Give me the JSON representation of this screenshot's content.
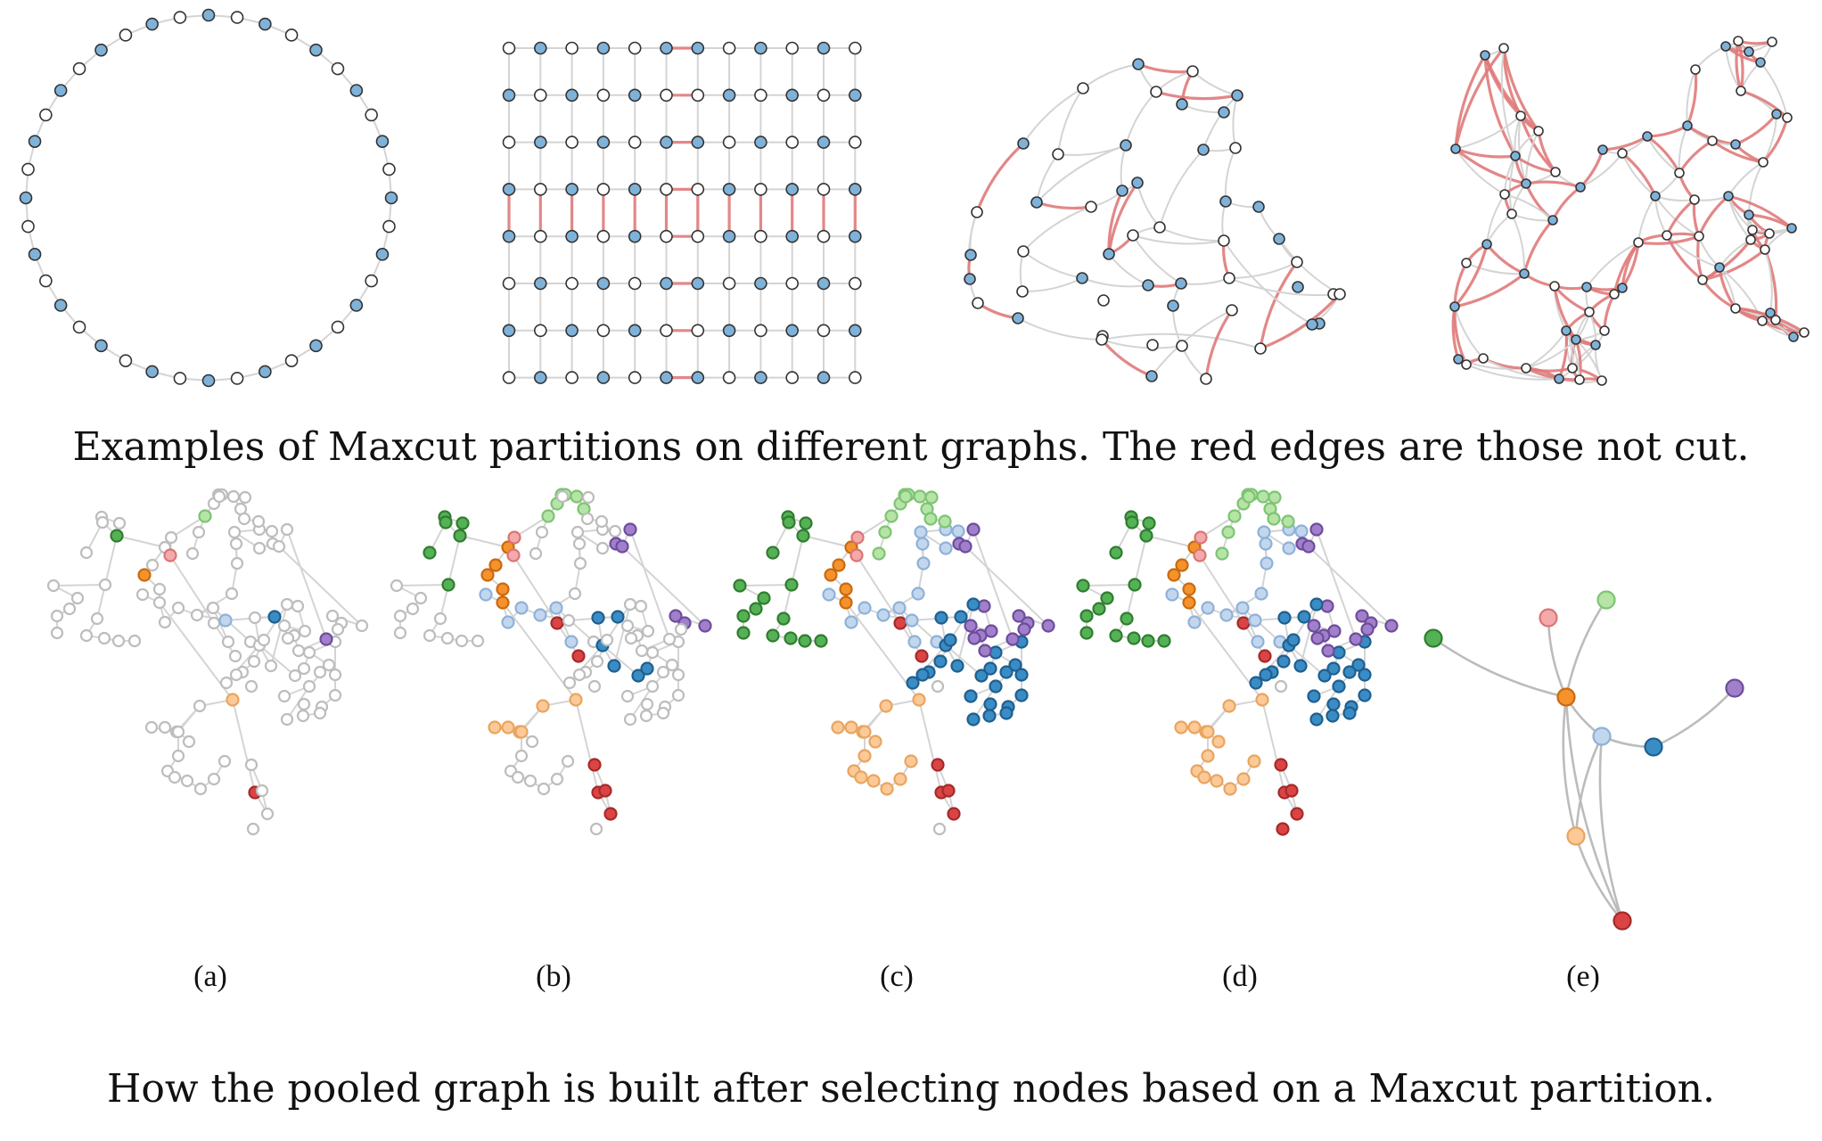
{
  "top_caption": "Examples of Maxcut partitions on different graphs. The red edges are those not cut.",
  "bottom_caption": "How the pooled graph is built after selecting nodes based on a Maxcut partition.",
  "panel_labels": [
    "(a)",
    "(b)",
    "(c)",
    "(d)",
    "(e)"
  ],
  "colors": {
    "selected_node": "#7fb2d9",
    "unselected_node": "#ffffff",
    "uncut_edge": "#e07a7a",
    "edge": "#d4d4d4",
    "cluster_green": "#55b155",
    "cluster_light_green": "#b5e4a6",
    "cluster_pink": "#f4a9aa",
    "cluster_orange": "#f5922b",
    "cluster_light_orange": "#fcc997",
    "cluster_light_blue": "#c2d7ee",
    "cluster_blue": "#3a8cc4",
    "cluster_red": "#db4444",
    "cluster_purple": "#a07fcb"
  }
}
